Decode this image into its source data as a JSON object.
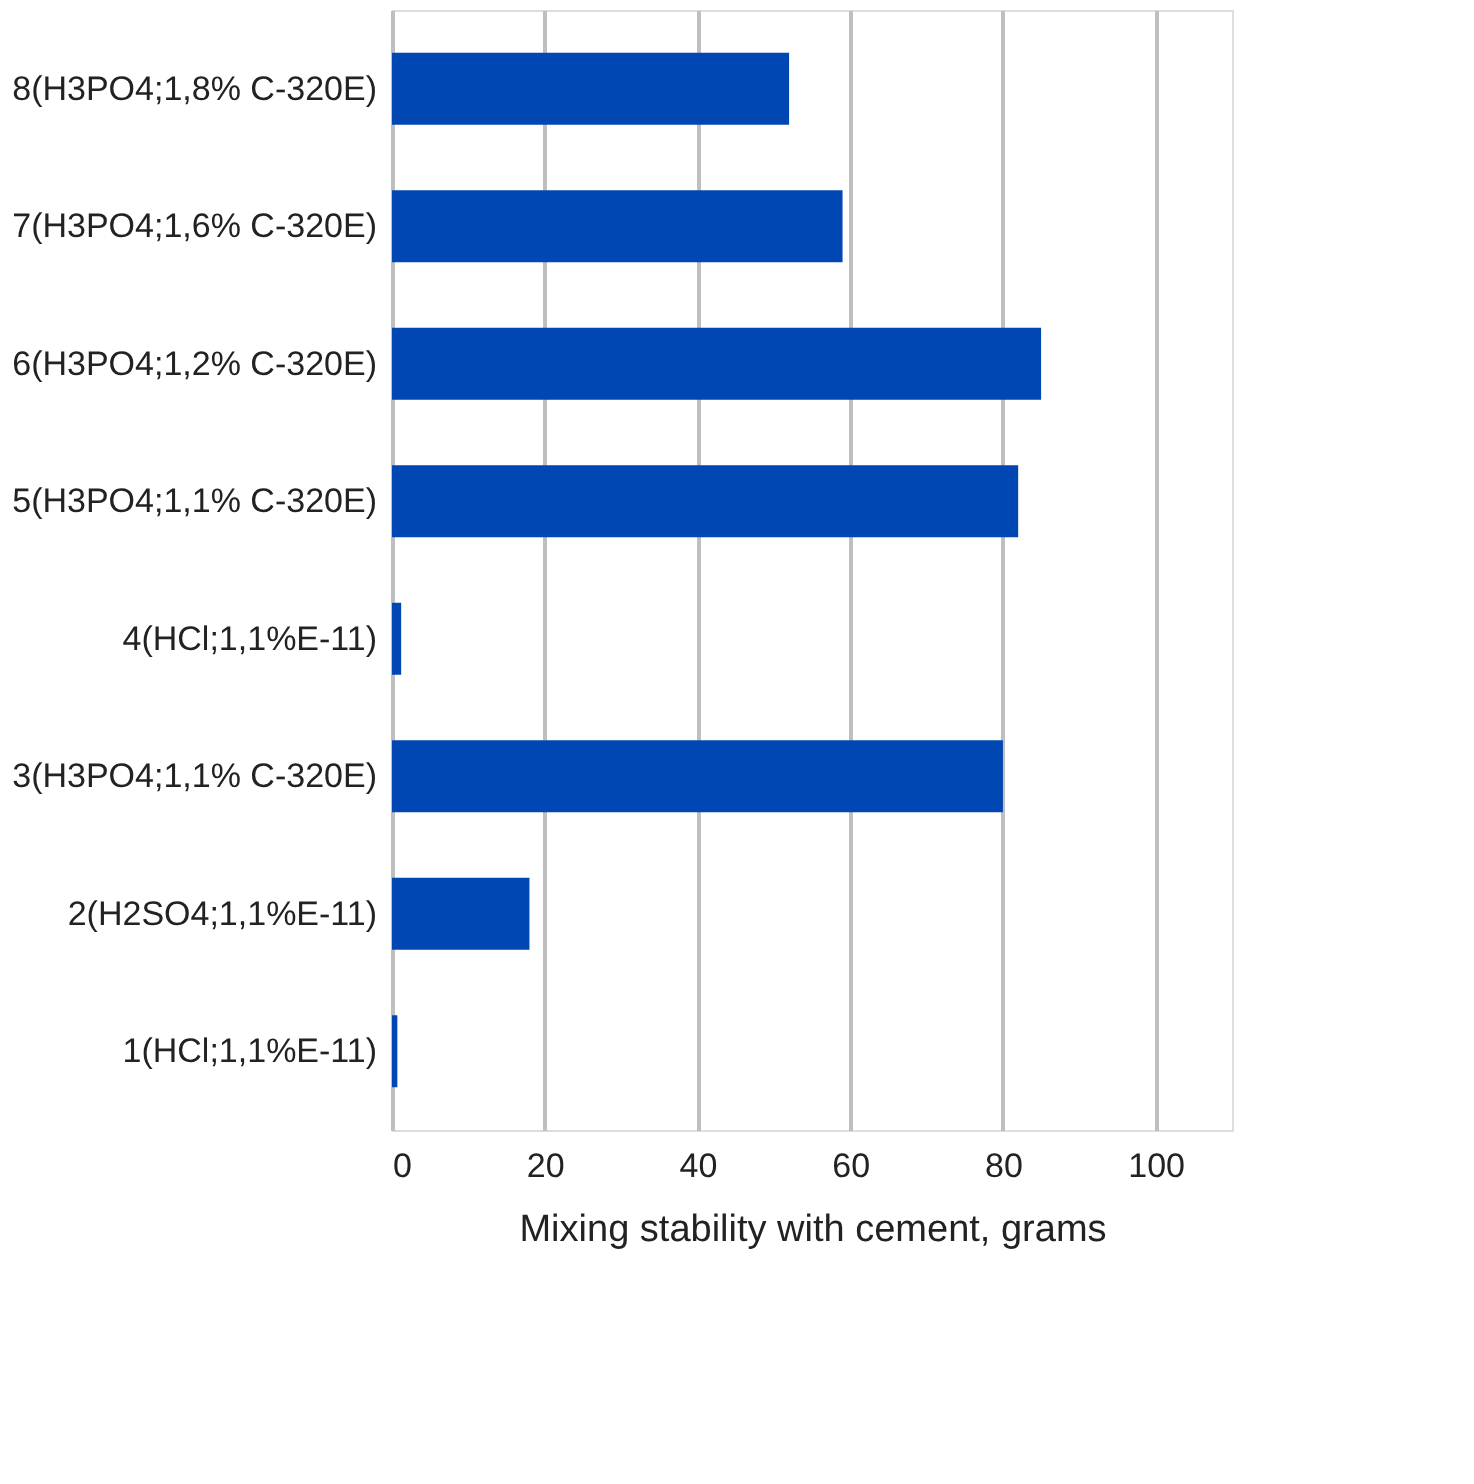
{
  "chart_data": {
    "type": "bar",
    "orientation": "horizontal",
    "categories": [
      "8(H3PO4;1,8% C-320E)",
      "7(H3PO4;1,6% C-320E)",
      "6(H3PO4;1,2% C-320E)",
      "5(H3PO4;1,1% C-320E)",
      "4(HCl;1,1%E-11)",
      "3(H3PO4;1,1% C-320E)",
      "2(H2SO4;1,1%E-11)",
      "1(HCl;1,1%E-11)"
    ],
    "values": [
      52,
      59,
      85,
      82,
      1.2,
      80,
      18,
      0.7
    ],
    "color": "#0047b3",
    "xlabel": "Mixing stability with cement, grams",
    "xlim": [
      0,
      110
    ],
    "xticks": [
      0,
      20,
      40,
      60,
      80,
      100
    ],
    "grid": "x"
  }
}
